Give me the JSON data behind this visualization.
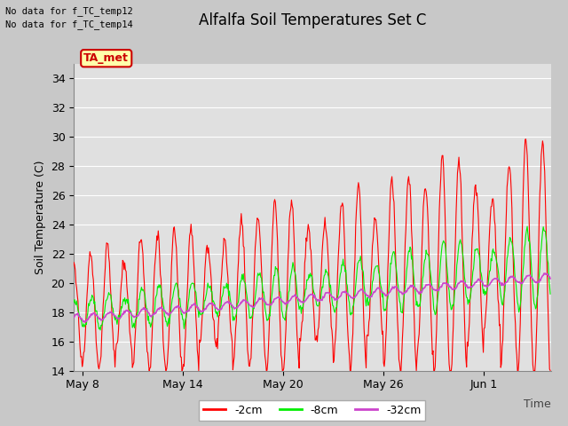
{
  "title": "Alfalfa Soil Temperatures Set C",
  "ylabel": "Soil Temperature (C)",
  "xlabel": "Time",
  "ylim": [
    14,
    35
  ],
  "yticks": [
    14,
    16,
    18,
    20,
    22,
    24,
    26,
    28,
    30,
    32,
    34
  ],
  "xtick_labels": [
    "May 8",
    "May 14",
    "May 20",
    "May 26",
    "Jun 1"
  ],
  "fig_bg_color": "#c8c8c8",
  "plot_bg_color": "#e0e0e0",
  "grid_color": "#ffffff",
  "line_2cm_color": "#ff0000",
  "line_8cm_color": "#00ee00",
  "line_32cm_color": "#cc44cc",
  "legend_labels": [
    "-2cm",
    "-8cm",
    "-32cm"
  ],
  "no_data_text1": "No data for f_TC_temp12",
  "no_data_text2": "No data for f_TC_temp14",
  "ta_met_label": "TA_met",
  "ta_met_bg": "#ffffaa",
  "ta_met_border": "#cc0000",
  "title_fontsize": 12,
  "axis_fontsize": 9,
  "legend_fontsize": 9
}
